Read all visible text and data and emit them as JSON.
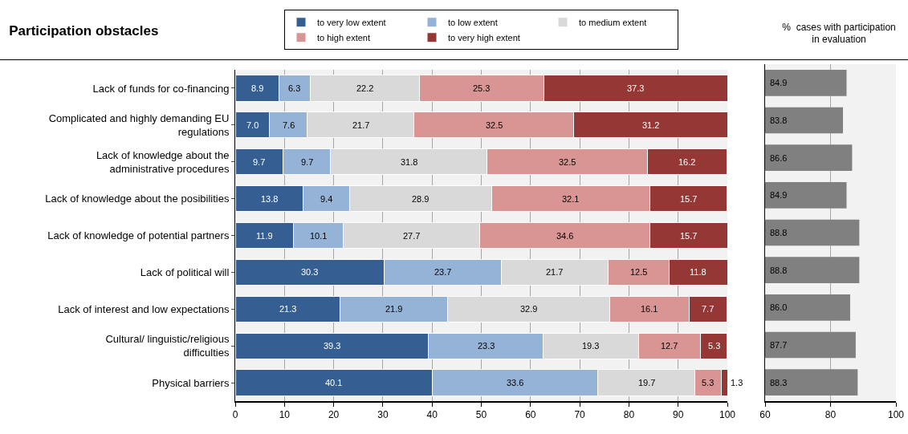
{
  "chart_data": [
    {
      "type": "bar",
      "title": "Participation obstacles",
      "orientation": "horizontal",
      "stacked": true,
      "legend": "top",
      "grid": "x",
      "data_labels": true,
      "categories": [
        "Lack of funds for co-financing",
        "Complicated and highly demanding EU regulations",
        "Lack of knowledge about the administrative procedures",
        "Lack of knowledge about the posibilities",
        "Lack of knowledge of potential partners",
        "Lack of political will",
        "Lack of interest and low expectations",
        "Cultural/ linguistic/religious difficulties",
        "Physical barriers"
      ],
      "xlim": [
        0,
        100
      ],
      "xticks": [
        0,
        10,
        20,
        30,
        40,
        50,
        60,
        70,
        80,
        90,
        100
      ],
      "series": [
        {
          "name": "to very low extent",
          "color": "#355f93",
          "values": [
            8.9,
            7.0,
            9.7,
            13.8,
            11.9,
            30.3,
            21.3,
            39.3,
            40.1
          ],
          "value_labels": [
            "8.9",
            "7.0",
            "9.7",
            "13.8",
            "11.9",
            "30.3",
            "21.3",
            "39.3",
            "40.1"
          ]
        },
        {
          "name": "to low extent",
          "color": "#95b3d7",
          "values": [
            6.3,
            7.6,
            9.7,
            9.4,
            10.1,
            23.7,
            21.9,
            23.3,
            33.6
          ],
          "value_labels": [
            "6.3",
            "7.6",
            "9.7",
            "9.4",
            "10.1",
            "23.7",
            "21.9",
            "23.3",
            "33.6"
          ]
        },
        {
          "name": "to medium extent",
          "color": "#d9d9d9",
          "values": [
            22.2,
            21.7,
            31.8,
            28.9,
            27.7,
            21.7,
            32.9,
            19.3,
            19.7
          ],
          "value_labels": [
            "22.2",
            "21.7",
            "31.8",
            "28.9",
            "27.7",
            "21.7",
            "32.9",
            "19.3",
            "19.7"
          ]
        },
        {
          "name": "to high extent",
          "color": "#d99594",
          "values": [
            25.3,
            32.5,
            32.5,
            32.1,
            34.6,
            12.5,
            16.1,
            12.7,
            5.3
          ],
          "value_labels": [
            "25.3",
            "32.5",
            "32.5",
            "32.1",
            "34.6",
            "12.5",
            "16.1",
            "12.7",
            "5.3"
          ]
        },
        {
          "name": "to very high extent",
          "color": "#953735",
          "values": [
            37.3,
            31.2,
            16.2,
            15.7,
            15.7,
            11.8,
            7.7,
            5.3,
            1.3
          ],
          "value_labels": [
            "37.3",
            "31.2",
            "16.2",
            "15.7",
            "15.7",
            "11.8",
            "7.7",
            "5.3",
            "1.3"
          ]
        }
      ]
    },
    {
      "type": "bar",
      "title": "%  cases with participation in evaluation",
      "orientation": "horizontal",
      "grid": "x",
      "data_labels": true,
      "tick_labels": "x",
      "categories": [
        null,
        null,
        null,
        null,
        null,
        null,
        null,
        null,
        null
      ],
      "xlim": [
        60,
        100
      ],
      "xticks": [
        60,
        80,
        100
      ],
      "series": [
        {
          "color": "#808080",
          "values": [
            84.9,
            83.8,
            86.6,
            84.9,
            88.8,
            88.8,
            86.0,
            87.7,
            88.3
          ],
          "value_labels": [
            "84.9",
            "83.8",
            "86.6",
            "84.9",
            "88.8",
            "88.8",
            "86.0",
            "87.7",
            "88.3"
          ]
        }
      ]
    }
  ]
}
